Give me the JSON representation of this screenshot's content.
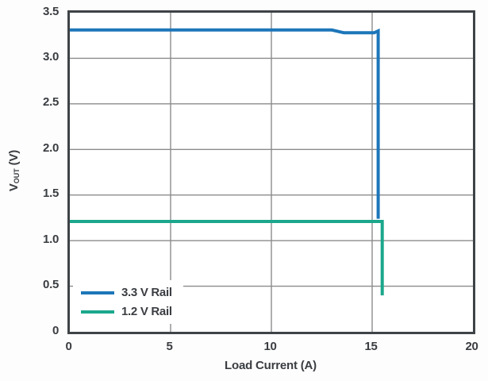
{
  "colors": {
    "plot_background": "#ffffff",
    "page_background": "#fdfdfd",
    "axis_border": "#3f4347",
    "gridline": "#8b8b8b",
    "text": "#3a3d41",
    "series_blue": "#1d76b9",
    "series_green": "#1ba78c"
  },
  "chart_data": {
    "type": "line",
    "title": "",
    "xlabel": "Load Current (A)",
    "ylabel": "VOUT (V)",
    "ylabel_parts": {
      "main": "V",
      "sub": "OUT",
      "rest": " (V)"
    },
    "xlim": [
      0,
      20
    ],
    "ylim": [
      0,
      3.5
    ],
    "xticks": [
      0,
      5,
      10,
      15,
      20
    ],
    "yticks": [
      0,
      0.5,
      1.0,
      1.5,
      2.0,
      2.5,
      3.0,
      3.5
    ],
    "xtick_labels": [
      "0",
      "5",
      "10",
      "15",
      "20"
    ],
    "ytick_labels": [
      "0",
      "0.5",
      "1.0",
      "1.5",
      "2.0",
      "2.5",
      "3.0",
      "3.5"
    ],
    "grid": true,
    "legend_position": "lower-left",
    "series": [
      {
        "name": "3.3 V Rail",
        "color": "#1d76b9",
        "points": [
          [
            0,
            3.31
          ],
          [
            13.0,
            3.31
          ],
          [
            13.6,
            3.28
          ],
          [
            15.1,
            3.28
          ],
          [
            15.3,
            3.3
          ],
          [
            15.3,
            1.24
          ]
        ]
      },
      {
        "name": "1.2 V Rail",
        "color": "#1ba78c",
        "points": [
          [
            0,
            1.21
          ],
          [
            15.5,
            1.21
          ],
          [
            15.5,
            0.4
          ]
        ]
      }
    ]
  }
}
